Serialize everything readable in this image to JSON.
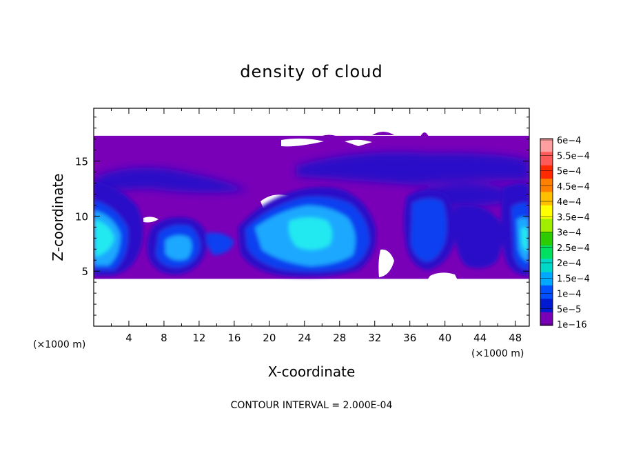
{
  "chart_data": {
    "type": "heatmap",
    "title": "density of cloud",
    "xlabel": "X-coordinate",
    "ylabel": "Z-coordinate",
    "x_unit_left": "(×1000 m)",
    "x_unit_right": "(×1000 m)",
    "xlim": [
      0,
      49.6
    ],
    "ylim": [
      0,
      19.8
    ],
    "xticks": [
      4,
      8,
      12,
      16,
      20,
      24,
      28,
      32,
      36,
      40,
      44,
      48
    ],
    "yticks": [
      5,
      10,
      15
    ],
    "footer": "CONTOUR INTERVAL = 2.000E-04",
    "colorbar": {
      "labels": [
        "6e−4",
        "5.5e−4",
        "5e−4",
        "4.5e−4",
        "4e−4",
        "3.5e−4",
        "3e−4",
        "2.5e−4",
        "2e−4",
        "1.5e−4",
        "1e−4",
        "5e−5",
        "1e−16"
      ],
      "colors": [
        "#ff9f9f",
        "#ff5a5a",
        "#ff2a00",
        "#ff7f00",
        "#ffc000",
        "#ffff00",
        "#a0ee00",
        "#2ccc00",
        "#00e060",
        "#00d8c8",
        "#00a8ff",
        "#0050ff",
        "#001ad0",
        "#7a00b8"
      ]
    },
    "cloud_extent": {
      "z_bottom": 4.3,
      "z_top": 17.3
    },
    "colors": {
      "cloud_base": "#7a00b8",
      "level_5e-5": "#2a10c8",
      "level_1e-4": "#1040f0",
      "level_1.5e-4": "#1aa8ff",
      "level_2e-4": "#20e8f0"
    }
  }
}
